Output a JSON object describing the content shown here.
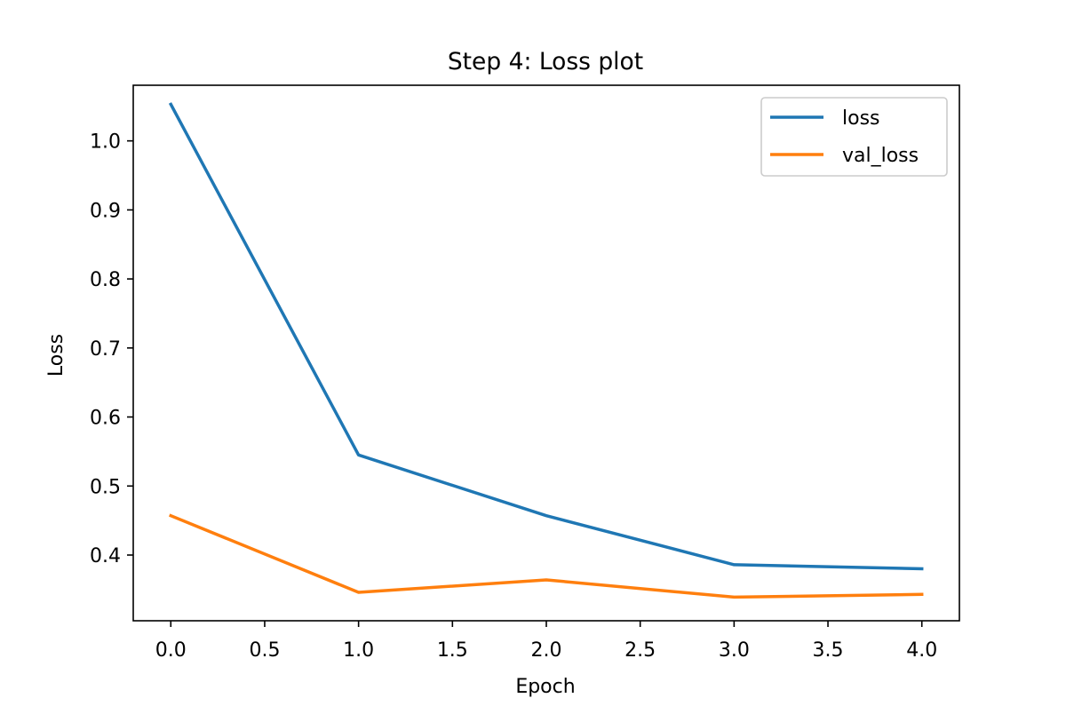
{
  "chart_data": {
    "type": "line",
    "title": "Step 4: Loss plot",
    "xlabel": "Epoch",
    "ylabel": "Loss",
    "x": [
      0,
      1,
      2,
      3,
      4
    ],
    "xlim": [
      -0.2,
      4.2
    ],
    "ylim": [
      0.3048,
      1.0806
    ],
    "xticks": [
      0.0,
      0.5,
      1.0,
      1.5,
      2.0,
      2.5,
      3.0,
      3.5,
      4.0
    ],
    "xtick_labels": [
      "0.0",
      "0.5",
      "1.0",
      "1.5",
      "2.0",
      "2.5",
      "3.0",
      "3.5",
      "4.0"
    ],
    "yticks": [
      0.4,
      0.5,
      0.6,
      0.7,
      0.8,
      0.9,
      1.0
    ],
    "ytick_labels": [
      "0.4",
      "0.5",
      "0.6",
      "0.7",
      "0.8",
      "0.9",
      "1.0"
    ],
    "grid": false,
    "legend_position": "top-right",
    "series": [
      {
        "name": "loss",
        "color": "#1f77b4",
        "values": [
          1.053,
          0.545,
          0.457,
          0.386,
          0.38
        ]
      },
      {
        "name": "val_loss",
        "color": "#ff7f0e",
        "values": [
          0.457,
          0.346,
          0.364,
          0.339,
          0.343
        ]
      }
    ]
  }
}
